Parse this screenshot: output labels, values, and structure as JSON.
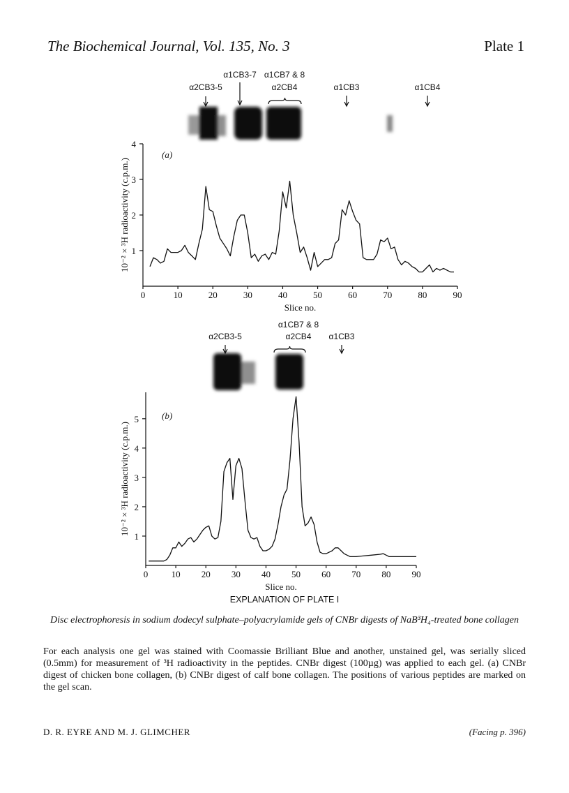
{
  "header": {
    "journal": "The Biochemical Journal, Vol. 135, No. 3",
    "plate": "Plate 1"
  },
  "chart_data": [
    {
      "type": "line",
      "panel_label": "(a)",
      "y_label": "10⁻² × ³H radioactivity (c.p.m.)",
      "x_label": "Slice no.",
      "annotations": [
        "α2CB3-5",
        "α1CB3-7",
        "α1CB7 & 8",
        "α2CB4",
        "α1CB3",
        "α1CB4"
      ],
      "color": "#111111",
      "xlim": [
        0,
        90
      ],
      "ylim": [
        0,
        4
      ],
      "xticks": [
        0,
        10,
        20,
        30,
        40,
        50,
        60,
        70,
        80,
        90
      ],
      "yticks": [
        1,
        2,
        3,
        4
      ],
      "x": [
        2,
        3,
        4,
        5,
        6,
        7,
        8,
        9,
        10,
        11,
        12,
        13,
        14,
        15,
        16,
        17,
        18,
        19,
        20,
        21,
        22,
        23,
        24,
        25,
        26,
        27,
        28,
        29,
        30,
        31,
        32,
        33,
        34,
        35,
        36,
        37,
        38,
        39,
        40,
        41,
        42,
        43,
        44,
        45,
        46,
        47,
        48,
        49,
        50,
        51,
        52,
        53,
        54,
        55,
        56,
        57,
        58,
        59,
        60,
        61,
        62,
        63,
        64,
        65,
        66,
        67,
        68,
        69,
        70,
        71,
        72,
        73,
        74,
        75,
        76,
        77,
        78,
        79,
        80,
        81,
        82,
        83,
        84,
        85,
        86,
        87,
        88,
        89
      ],
      "values": [
        0.55,
        0.8,
        0.75,
        0.65,
        0.7,
        1.05,
        0.95,
        0.95,
        0.95,
        1.0,
        1.15,
        0.95,
        0.85,
        0.75,
        1.2,
        1.6,
        2.8,
        2.15,
        2.1,
        1.7,
        1.35,
        1.2,
        1.05,
        0.85,
        1.4,
        1.85,
        2.0,
        2.0,
        1.5,
        0.8,
        0.9,
        0.7,
        0.85,
        0.9,
        0.75,
        0.95,
        0.9,
        1.55,
        2.65,
        2.2,
        2.95,
        2.0,
        1.5,
        0.95,
        1.1,
        0.8,
        0.45,
        0.95,
        0.55,
        0.65,
        0.75,
        0.75,
        0.8,
        1.2,
        1.3,
        2.15,
        2.0,
        2.4,
        2.1,
        1.85,
        1.75,
        0.8,
        0.75,
        0.75,
        0.75,
        0.9,
        1.3,
        1.25,
        1.35,
        1.05,
        1.1,
        0.75,
        0.6,
        0.7,
        0.65,
        0.55,
        0.5,
        0.4,
        0.4,
        0.5,
        0.6,
        0.4,
        0.5,
        0.45,
        0.5,
        0.45,
        0.4,
        0.4
      ]
    },
    {
      "type": "line",
      "panel_label": "(b)",
      "y_label": "10⁻² × ³H radioactivity (c.p.m.)",
      "x_label": "Slice no.",
      "annotations": [
        "α2CB3-5",
        "α1CB7 & 8",
        "α2CB4",
        "α1CB3"
      ],
      "color": "#111111",
      "xlim": [
        0,
        90
      ],
      "ylim": [
        0,
        5.9
      ],
      "xticks": [
        0,
        10,
        20,
        30,
        40,
        50,
        60,
        70,
        80,
        90
      ],
      "yticks": [
        1,
        2,
        3,
        4,
        5
      ],
      "x": [
        1,
        6,
        7,
        8,
        9,
        10,
        11,
        12,
        13,
        14,
        15,
        16,
        17,
        18,
        19,
        20,
        21,
        22,
        23,
        24,
        25,
        26,
        27,
        28,
        29,
        30,
        31,
        32,
        33,
        34,
        35,
        36,
        37,
        38,
        39,
        40,
        41,
        42,
        43,
        44,
        45,
        46,
        47,
        48,
        49,
        50,
        51,
        52,
        53,
        54,
        55,
        56,
        57,
        58,
        59,
        60,
        61,
        62,
        63,
        64,
        65,
        66,
        67,
        68,
        70,
        72,
        75,
        78,
        79,
        80,
        81,
        90
      ],
      "values": [
        0.15,
        0.15,
        0.2,
        0.35,
        0.6,
        0.6,
        0.8,
        0.65,
        0.75,
        0.9,
        0.95,
        0.8,
        0.9,
        1.05,
        1.2,
        1.3,
        1.35,
        1.0,
        0.9,
        0.95,
        1.5,
        3.2,
        3.5,
        3.65,
        2.25,
        3.4,
        3.65,
        3.3,
        2.2,
        1.2,
        0.95,
        0.9,
        0.95,
        0.65,
        0.5,
        0.5,
        0.55,
        0.65,
        0.9,
        1.4,
        2.0,
        2.4,
        2.6,
        3.6,
        5.0,
        5.75,
        4.2,
        2.0,
        1.35,
        1.45,
        1.65,
        1.4,
        0.8,
        0.45,
        0.4,
        0.4,
        0.45,
        0.5,
        0.6,
        0.6,
        0.5,
        0.4,
        0.35,
        0.3,
        0.3,
        0.32,
        0.35,
        0.38,
        0.4,
        0.35,
        0.3,
        0.3
      ]
    }
  ],
  "caption": {
    "heading": "EXPLANATION OF PLATE I",
    "title": "Disc electrophoresis in sodium dodecyl sulphate–polyacrylamide gels of CNBr digests of NaB³H₄-treated bone collagen",
    "text": "For each analysis one gel was stained with Coomassie Brilliant Blue and another, unstained gel, was serially sliced (0.5mm) for measurement of ³H radioactivity in the peptides. CNBr digest (100µg) was applied to each gel. (a) CNBr digest of chicken bone collagen, (b) CNBr digest of calf bone collagen. The positions of various peptides are marked on the gel scan."
  },
  "footer": {
    "authors": "D. R. EYRE AND M. J. GLIMCHER",
    "facing": "(Facing p. 396)"
  }
}
